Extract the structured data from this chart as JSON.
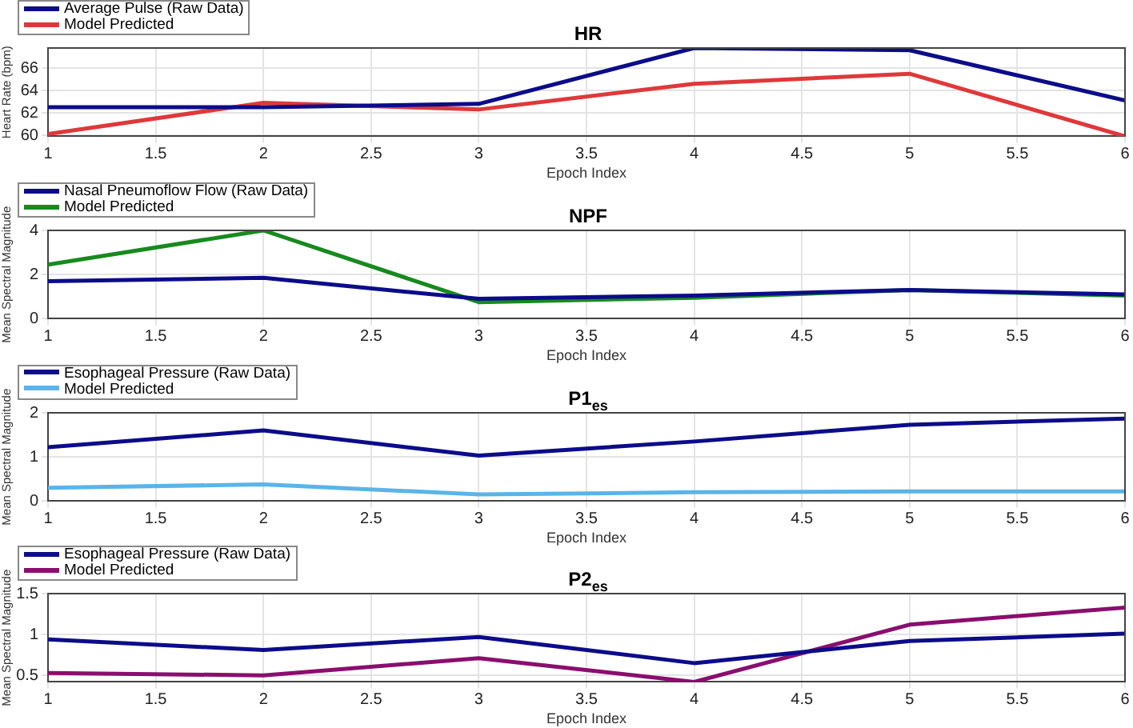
{
  "chart_data": [
    {
      "type": "line",
      "title": "HR",
      "xlabel": "Epoch Index",
      "ylabel": "Heart Rate (bpm)",
      "x": [
        1,
        2,
        3,
        4,
        5,
        6
      ],
      "xlim": [
        1,
        6
      ],
      "xticks": [
        1,
        1.5,
        2,
        2.5,
        3,
        3.5,
        4,
        4.5,
        5,
        5.5,
        6
      ],
      "ylim": [
        59.9,
        67.8
      ],
      "yticks": [
        60,
        62,
        64,
        66
      ],
      "grid": true,
      "legend": "top left",
      "series": [
        {
          "name": "Average Pulse (Raw Data)",
          "color": "#0c0c8a",
          "values": [
            62.5,
            62.5,
            62.8,
            67.8,
            67.6,
            63.1
          ]
        },
        {
          "name": "Model Predicted",
          "color": "#e0383a",
          "values": [
            60.1,
            62.9,
            62.3,
            64.6,
            65.5,
            59.9
          ]
        }
      ]
    },
    {
      "type": "line",
      "title": "NPF",
      "xlabel": "Epoch Index",
      "ylabel": "Mean Spectral Magnitude",
      "x": [
        1,
        2,
        3,
        4,
        5,
        6
      ],
      "xlim": [
        1,
        6
      ],
      "xticks": [
        1,
        1.5,
        2,
        2.5,
        3,
        3.5,
        4,
        4.5,
        5,
        5.5,
        6
      ],
      "ylim": [
        0,
        4
      ],
      "yticks": [
        0,
        2,
        4
      ],
      "grid": true,
      "legend": "top left",
      "series": [
        {
          "name": "Nasal Pneumoflow Flow (Raw Data)",
          "color": "#0c0c8a",
          "values": [
            1.7,
            1.85,
            0.9,
            1.05,
            1.3,
            1.1
          ]
        },
        {
          "name": "Model Predicted",
          "color": "#178a1e",
          "values": [
            2.45,
            4.0,
            0.75,
            0.95,
            1.3,
            1.05
          ]
        }
      ]
    },
    {
      "type": "line",
      "title": "P1$_{es}$",
      "xlabel": "Epoch Index",
      "ylabel": "Mean Spectral Magnitude",
      "x": [
        1,
        2,
        3,
        4,
        5,
        6
      ],
      "xlim": [
        1,
        6
      ],
      "xticks": [
        1,
        1.5,
        2,
        2.5,
        3,
        3.5,
        4,
        4.5,
        5,
        5.5,
        6
      ],
      "ylim": [
        0,
        2
      ],
      "yticks": [
        0,
        1,
        2
      ],
      "grid": true,
      "legend": "top left",
      "series": [
        {
          "name": "Esophageal Pressure (Raw Data)",
          "color": "#0c0c8a",
          "values": [
            1.22,
            1.6,
            1.03,
            1.35,
            1.73,
            1.87
          ]
        },
        {
          "name": "Model Predicted",
          "color": "#5ab4e8",
          "values": [
            0.3,
            0.38,
            0.15,
            0.2,
            0.22,
            0.22
          ]
        }
      ]
    },
    {
      "type": "line",
      "title": "P2$_{es}$",
      "xlabel": "Epoch Index",
      "ylabel": "Mean Spectral Magnitude",
      "x": [
        1,
        2,
        3,
        4,
        5,
        6
      ],
      "xlim": [
        1,
        6
      ],
      "xticks": [
        1,
        1.5,
        2,
        2.5,
        3,
        3.5,
        4,
        4.5,
        5,
        5.5,
        6
      ],
      "ylim": [
        0.42,
        1.5
      ],
      "yticks": [
        0.5,
        1,
        1.5
      ],
      "grid": true,
      "legend": "top left",
      "series": [
        {
          "name": "Esophageal Pressure (Raw Data)",
          "color": "#0c0c8a",
          "values": [
            0.94,
            0.81,
            0.97,
            0.65,
            0.92,
            1.01
          ]
        },
        {
          "name": "Model Predicted",
          "color": "#8a0e6e",
          "values": [
            0.53,
            0.5,
            0.71,
            0.42,
            1.12,
            1.33
          ]
        }
      ]
    }
  ]
}
